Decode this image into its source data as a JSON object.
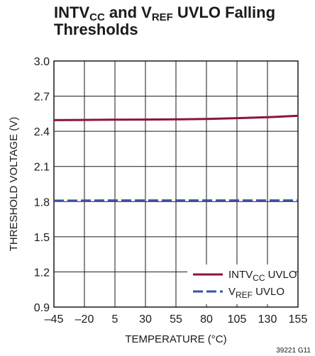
{
  "chart_data": {
    "type": "line",
    "title": {
      "prefix": "INTV",
      "sub1": "CC",
      "middle": " and V",
      "sub2": "REF",
      "suffix": " UVLO Falling Thresholds"
    },
    "xlabel": "TEMPERATURE (°C)",
    "ylabel": "THRESHOLD VOLTAGE (V)",
    "xlim": [
      -45,
      155
    ],
    "ylim": [
      0.9,
      3.0
    ],
    "x_ticks": [
      "–45",
      "–20",
      "5",
      "30",
      "55",
      "80",
      "105",
      "130",
      "155"
    ],
    "x_tick_values": [
      -45,
      -20,
      5,
      30,
      55,
      80,
      105,
      130,
      155
    ],
    "y_ticks": [
      "0.9",
      "1.2",
      "1.5",
      "1.8",
      "2.1",
      "2.4",
      "2.7",
      "3.0"
    ],
    "y_tick_values": [
      0.9,
      1.2,
      1.5,
      1.8,
      2.1,
      2.4,
      2.7,
      3.0
    ],
    "grid": true,
    "legend_position": "bottom-right",
    "series": [
      {
        "legend_main": "INTV",
        "legend_sub": "CC",
        "legend_suffix": " UVLO",
        "color": "#8b1538",
        "style": "solid",
        "x": [
          -45,
          -20,
          5,
          30,
          55,
          80,
          105,
          130,
          155
        ],
        "y": [
          2.495,
          2.497,
          2.499,
          2.5,
          2.502,
          2.505,
          2.512,
          2.52,
          2.532
        ]
      },
      {
        "legend_main": "V",
        "legend_sub": "REF",
        "legend_suffix": " UVLO",
        "color": "#3553a5",
        "style": "dashed",
        "x": [
          -45,
          -20,
          5,
          30,
          55,
          80,
          105,
          130,
          155
        ],
        "y": [
          1.808,
          1.809,
          1.81,
          1.81,
          1.81,
          1.81,
          1.81,
          1.81,
          1.81
        ]
      }
    ],
    "figure_id": "39221 G11"
  }
}
